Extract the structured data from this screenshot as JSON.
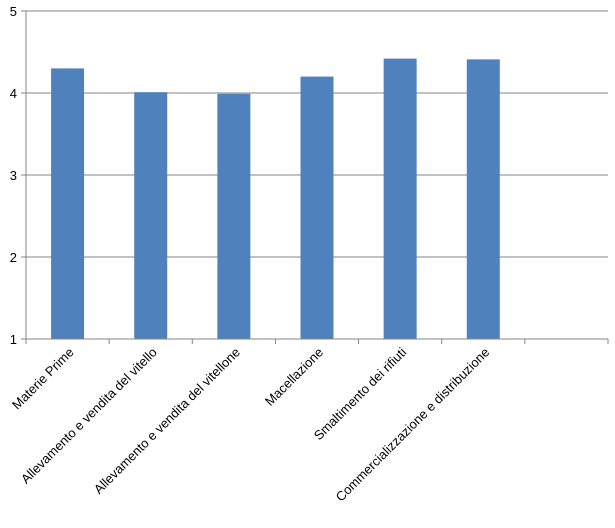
{
  "chart_data": {
    "type": "bar",
    "title": "",
    "xlabel": "",
    "ylabel": "",
    "categories": [
      "Materie Prime",
      "Allevamento e vendita del vitello",
      "Allevamento e vendita del vitellone",
      "Macellazione",
      "Smaltimento dei rifiuti",
      "Commercializzazione e distribuzione",
      ""
    ],
    "values": [
      4.3,
      4.01,
      3.99,
      4.2,
      4.42,
      4.41,
      null
    ],
    "ylim": [
      1,
      5
    ],
    "yticks": [
      "1",
      "2",
      "3",
      "4",
      "5"
    ],
    "grid": true,
    "legend": "none",
    "colors": {
      "bar": "#4f81bd",
      "grid": "#868686",
      "axis": "#868686"
    }
  }
}
